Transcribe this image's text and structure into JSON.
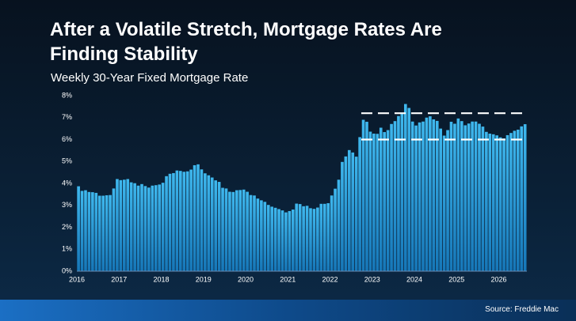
{
  "chart_data": {
    "type": "bar",
    "title": "After a Volatile Stretch, Mortgage Rates Are Finding Stability",
    "subtitle": "Weekly 30-Year Fixed Mortgage Rate",
    "source": "Source: Freddie Mac",
    "color": "#2aa3de",
    "categories": [
      "2016",
      null,
      null,
      null,
      null,
      null,
      null,
      null,
      null,
      null,
      null,
      null,
      "2017",
      null,
      null,
      null,
      null,
      null,
      null,
      null,
      null,
      null,
      null,
      null,
      "2018",
      null,
      null,
      null,
      null,
      null,
      null,
      null,
      null,
      null,
      null,
      null,
      "2019",
      null,
      null,
      null,
      null,
      null,
      null,
      null,
      null,
      null,
      null,
      null,
      "2020",
      null,
      null,
      null,
      null,
      null,
      null,
      null,
      null,
      null,
      null,
      null,
      "2021",
      null,
      null,
      null,
      null,
      null,
      null,
      null,
      null,
      null,
      null,
      null,
      "2022",
      null,
      null,
      null,
      null,
      null,
      null,
      null,
      null,
      null,
      null,
      null,
      "2023",
      null,
      null,
      null,
      null,
      null,
      null,
      null,
      null,
      null,
      null,
      null,
      "2024",
      null,
      null,
      null,
      null,
      null,
      null,
      null,
      null,
      null,
      null,
      null,
      "2025",
      null,
      null,
      null,
      null,
      null,
      null,
      null,
      null,
      null,
      null,
      null,
      "2026",
      null,
      null,
      null,
      null,
      null,
      null,
      null
    ],
    "values": [
      3.87,
      3.66,
      3.69,
      3.61,
      3.6,
      3.57,
      3.44,
      3.44,
      3.46,
      3.47,
      3.77,
      4.2,
      4.15,
      4.17,
      4.2,
      4.05,
      4.01,
      3.9,
      3.97,
      3.88,
      3.81,
      3.9,
      3.92,
      3.95,
      4.03,
      4.33,
      4.44,
      4.47,
      4.59,
      4.57,
      4.53,
      4.55,
      4.63,
      4.83,
      4.87,
      4.64,
      4.46,
      4.37,
      4.27,
      4.14,
      4.07,
      3.8,
      3.77,
      3.62,
      3.61,
      3.69,
      3.7,
      3.72,
      3.62,
      3.47,
      3.45,
      3.31,
      3.23,
      3.16,
      3.02,
      2.94,
      2.89,
      2.83,
      2.77,
      2.68,
      2.74,
      2.81,
      3.08,
      3.06,
      2.96,
      2.98,
      2.87,
      2.84,
      2.9,
      3.07,
      3.07,
      3.1,
      3.45,
      3.76,
      4.17,
      4.98,
      5.23,
      5.52,
      5.41,
      5.22,
      6.11,
      6.9,
      6.81,
      6.36,
      6.27,
      6.26,
      6.54,
      6.34,
      6.43,
      6.71,
      6.84,
      7.07,
      7.2,
      7.62,
      7.44,
      6.82,
      6.64,
      6.78,
      6.82,
      7.0,
      7.06,
      6.92,
      6.85,
      6.5,
      6.18,
      6.43,
      6.81,
      6.72,
      6.96,
      6.84,
      6.65,
      6.73,
      6.82,
      6.82,
      6.72,
      6.59,
      6.35,
      6.27,
      6.24,
      6.19,
      6.1,
      6.05,
      6.2,
      6.3,
      6.4,
      6.45,
      6.6,
      6.7
    ],
    "ylim": [
      0,
      8
    ],
    "yticks": [
      {
        "value": 0,
        "label": "0%"
      },
      {
        "value": 1,
        "label": "1%"
      },
      {
        "value": 2,
        "label": "2%"
      },
      {
        "value": 3,
        "label": "3%"
      },
      {
        "value": 4,
        "label": "4%"
      },
      {
        "value": 5,
        "label": "5%"
      },
      {
        "value": 6,
        "label": "6%"
      },
      {
        "value": 7,
        "label": "7%"
      },
      {
        "value": 8,
        "label": "8%"
      }
    ],
    "reference_lines": [
      6,
      7.2
    ]
  }
}
